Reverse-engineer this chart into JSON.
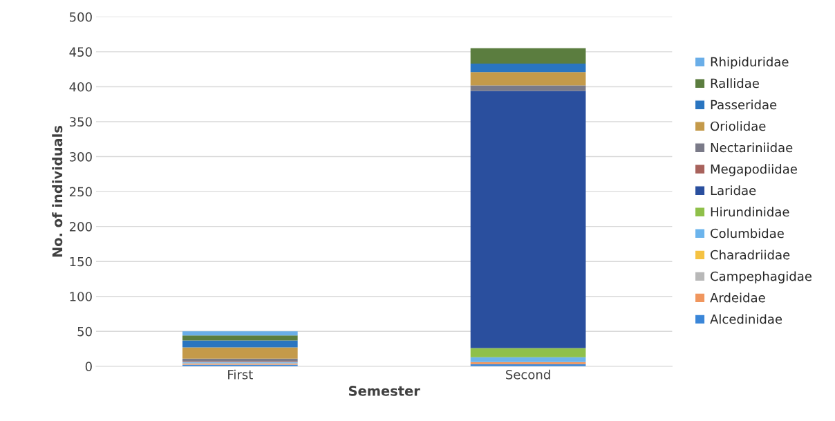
{
  "chart_data": {
    "type": "bar",
    "stacked": true,
    "xlabel": "Semester",
    "ylabel": "No. of individuals",
    "categories": [
      "First",
      "Second"
    ],
    "series": [
      {
        "name": "Alcedinidae",
        "color": "#3a86d8",
        "values": [
          2,
          3
        ]
      },
      {
        "name": "Ardeidae",
        "color": "#f0965e",
        "values": [
          1,
          3
        ]
      },
      {
        "name": "Campephagidae",
        "color": "#b8b8b8",
        "values": [
          2,
          0
        ]
      },
      {
        "name": "Charadriidae",
        "color": "#f5c242",
        "values": [
          0,
          0
        ]
      },
      {
        "name": "Columbidae",
        "color": "#6cb4ec",
        "values": [
          1,
          7
        ]
      },
      {
        "name": "Hirundinidae",
        "color": "#8fc04a",
        "values": [
          0,
          13
        ]
      },
      {
        "name": "Laridae",
        "color": "#2a4f9e",
        "values": [
          0,
          368
        ]
      },
      {
        "name": "Megapodiidae",
        "color": "#a8625c",
        "values": [
          1,
          0
        ]
      },
      {
        "name": "Nectariniidae",
        "color": "#7a7a88",
        "values": [
          4,
          8
        ]
      },
      {
        "name": "Oriolidae",
        "color": "#c49a4a",
        "values": [
          16,
          19
        ]
      },
      {
        "name": "Passeridae",
        "color": "#2a75c0",
        "values": [
          10,
          12
        ]
      },
      {
        "name": "Rallidae",
        "color": "#5b7d3f",
        "values": [
          7,
          22
        ]
      },
      {
        "name": "Rhipiduridae",
        "color": "#6aaee8",
        "values": [
          6,
          0
        ]
      }
    ],
    "ylim": [
      0,
      500
    ],
    "yticks": [
      0,
      50,
      100,
      150,
      200,
      250,
      300,
      350,
      400,
      450,
      500
    ],
    "grid": "y",
    "legend": "right"
  }
}
